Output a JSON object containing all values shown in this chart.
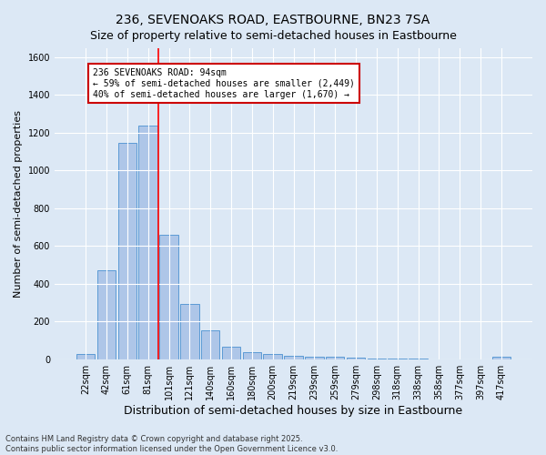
{
  "title": "236, SEVENOAKS ROAD, EASTBOURNE, BN23 7SA",
  "subtitle": "Size of property relative to semi-detached houses in Eastbourne",
  "xlabel": "Distribution of semi-detached houses by size in Eastbourne",
  "ylabel": "Number of semi-detached properties",
  "categories": [
    "22sqm",
    "42sqm",
    "61sqm",
    "81sqm",
    "101sqm",
    "121sqm",
    "140sqm",
    "160sqm",
    "180sqm",
    "200sqm",
    "219sqm",
    "239sqm",
    "259sqm",
    "279sqm",
    "298sqm",
    "318sqm",
    "338sqm",
    "358sqm",
    "377sqm",
    "397sqm",
    "417sqm"
  ],
  "values": [
    28,
    470,
    1145,
    1240,
    660,
    295,
    155,
    65,
    35,
    28,
    18,
    12,
    15,
    8,
    2,
    5,
    2,
    1,
    1,
    1,
    12
  ],
  "bar_color": "#aec6e8",
  "bar_edge_color": "#5b9bd5",
  "background_color": "#dce8f5",
  "grid_color": "#ffffff",
  "red_line_x": 3.5,
  "annotation_text": "236 SEVENOAKS ROAD: 94sqm\n← 59% of semi-detached houses are smaller (2,449)\n40% of semi-detached houses are larger (1,670) →",
  "annotation_box_color": "#ffffff",
  "annotation_box_edge": "#cc0000",
  "ylim": [
    0,
    1650
  ],
  "yticks": [
    0,
    200,
    400,
    600,
    800,
    1000,
    1200,
    1400,
    1600
  ],
  "footer1": "Contains HM Land Registry data © Crown copyright and database right 2025.",
  "footer2": "Contains public sector information licensed under the Open Government Licence v3.0.",
  "title_fontsize": 10,
  "subtitle_fontsize": 9,
  "ylabel_fontsize": 8,
  "xlabel_fontsize": 9,
  "tick_fontsize": 7,
  "annot_fontsize": 7,
  "footer_fontsize": 6
}
